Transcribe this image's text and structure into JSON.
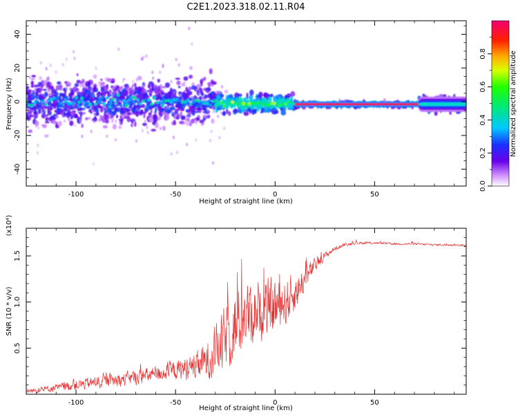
{
  "title": "C2E1.2023.318.02.11.R04",
  "chart_data": [
    {
      "type": "heatmap",
      "xlabel": "Height of straight line (km)",
      "ylabel": "Frequency (Hz)",
      "xlim": [
        -125,
        96
      ],
      "ylim": [
        -50,
        48
      ],
      "xticks": [
        -100,
        -50,
        0,
        50
      ],
      "yticks": [
        -40,
        -20,
        0,
        20,
        40
      ],
      "xtick_labels": [
        "-100",
        "-50",
        "0",
        "50"
      ],
      "ytick_labels": [
        "-40",
        "-20",
        "0",
        "20",
        "40"
      ],
      "colorbar": {
        "label": "Normalized spectral amplitude",
        "range": [
          0,
          1
        ],
        "ticks": [
          0.0,
          0.2,
          0.4,
          0.6,
          0.8
        ],
        "tick_labels": [
          "0.0",
          "0.2",
          "0.4",
          "0.6",
          "0.8"
        ],
        "colormap": "rainbow: white-purple-blue-cyan-green-yellow-orange-red-magenta"
      },
      "features": [
        {
          "x_range": [
            -125,
            -30
          ],
          "freq_center": 0,
          "freq_spread": 12,
          "amplitude": 0.25,
          "description": "broad noisy purple/blue band"
        },
        {
          "x_range": [
            -30,
            10
          ],
          "freq_center": -1,
          "freq_spread": 5,
          "amplitude": 0.5,
          "description": "narrowing band with green/yellow peaks"
        },
        {
          "x_range": [
            10,
            72
          ],
          "freq_center": -1.5,
          "freq_spread": 1.5,
          "amplitude": 0.95,
          "description": "narrow red/magenta line"
        },
        {
          "x_range": [
            72,
            96
          ],
          "freq_center": -1.5,
          "freq_spread": 4,
          "amplitude": 0.45,
          "description": "widening cyan/blue band"
        }
      ]
    },
    {
      "type": "line",
      "xlabel": "Height of straight line (km)",
      "ylabel": "SNR (10 * v/v)",
      "y_multiplier": "(x10⁴)",
      "xlim": [
        -125,
        96
      ],
      "ylim": [
        0,
        1.8
      ],
      "xticks": [
        -100,
        -50,
        0,
        50
      ],
      "yticks": [
        0.5,
        1.0,
        1.5
      ],
      "xtick_labels": [
        "-100",
        "-50",
        "0",
        "50"
      ],
      "ytick_labels": [
        "0.5",
        "1.0",
        "1.5"
      ],
      "series": [
        {
          "name": "SNR",
          "color": "#e83030",
          "x": [
            -125,
            -110,
            -100,
            -90,
            -80,
            -70,
            -60,
            -50,
            -40,
            -35,
            -30,
            -25,
            -20,
            -15,
            -10,
            -5,
            0,
            5,
            10,
            15,
            20,
            25,
            30,
            35,
            40,
            50,
            60,
            70,
            80,
            90,
            96
          ],
          "y": [
            0.03,
            0.07,
            0.1,
            0.13,
            0.15,
            0.18,
            0.22,
            0.26,
            0.3,
            0.35,
            0.45,
            0.6,
            0.75,
            0.85,
            0.9,
            0.92,
            0.95,
            1.0,
            1.1,
            1.25,
            1.4,
            1.5,
            1.58,
            1.62,
            1.64,
            1.64,
            1.63,
            1.63,
            1.62,
            1.62,
            1.61
          ],
          "noise_amplitude": [
            0.03,
            0.05,
            0.07,
            0.08,
            0.09,
            0.1,
            0.11,
            0.13,
            0.18,
            0.25,
            0.35,
            0.45,
            0.5,
            0.45,
            0.4,
            0.38,
            0.4,
            0.32,
            0.25,
            0.18,
            0.1,
            0.05,
            0.03,
            0.02,
            0.02,
            0.015,
            0.015,
            0.015,
            0.015,
            0.015,
            0.015
          ]
        }
      ]
    }
  ]
}
